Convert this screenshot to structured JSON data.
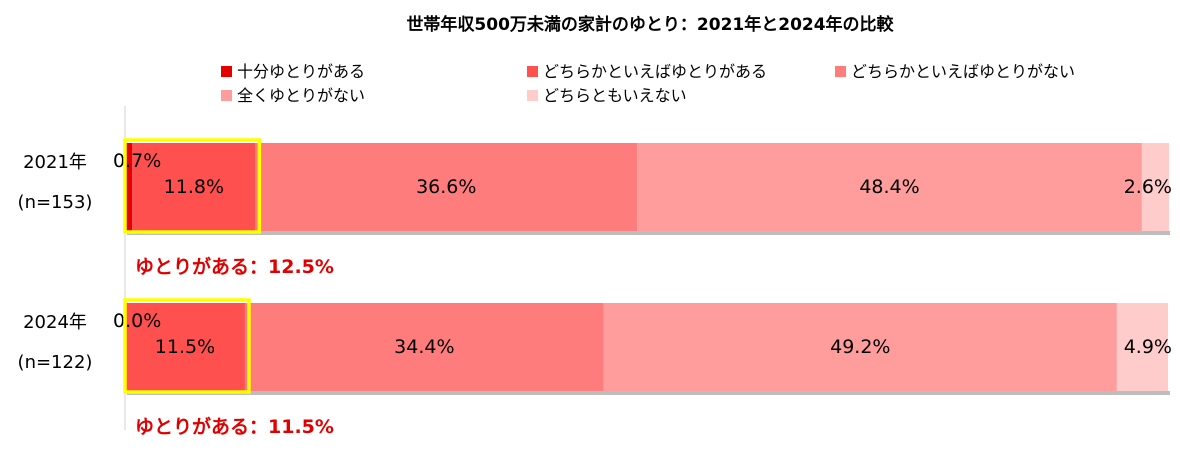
{
  "chart_data": {
    "type": "bar",
    "orientation": "horizontal",
    "stacked": "100%",
    "title": "世帯年収500万未満の家計のゆとり：2021年と2024年の比較",
    "categories": [
      {
        "year": "2021年",
        "n": "(n=153)"
      },
      {
        "year": "2024年",
        "n": "(n=122)"
      }
    ],
    "series": [
      {
        "name": "十分ゆとりがある",
        "color": "#e60000",
        "values": [
          0.7,
          0.0
        ],
        "labels": [
          "0.7%",
          "0.0%"
        ]
      },
      {
        "name": "どちらかといえばゆとりがある",
        "color": "#ff5050",
        "values": [
          11.8,
          11.5
        ],
        "labels": [
          "11.8%",
          "11.5%"
        ]
      },
      {
        "name": "どちらかといえばゆとりがない",
        "color": "#ff7c7c",
        "values": [
          36.6,
          34.4
        ],
        "labels": [
          "36.6%",
          "34.4%"
        ]
      },
      {
        "name": "全くゆとりがない",
        "color": "#ff9d9d",
        "values": [
          48.4,
          49.2
        ],
        "labels": [
          "48.4%",
          "49.2%"
        ]
      },
      {
        "name": "どちらともいえない",
        "color": "#ffcccc",
        "values": [
          2.6,
          4.9
        ],
        "labels": [
          "2.6%",
          "4.9%"
        ]
      }
    ],
    "summaries": [
      "ゆとりがある：12.5%",
      "ゆとりがある：11.5%"
    ],
    "highlight_color": "#ffff00",
    "summary_color": "#e00000",
    "xlim": [
      0,
      100
    ],
    "grid": false,
    "legend": "top"
  }
}
